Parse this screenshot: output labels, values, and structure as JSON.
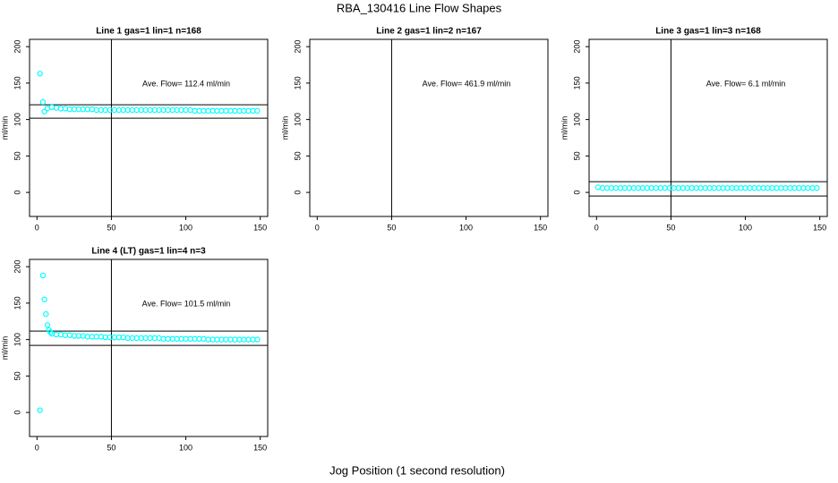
{
  "title": "RBA_130416  Line Flow Shapes",
  "xlabel": "Jog Position (1 second resolution)",
  "chart_data": [
    {
      "type": "scatter",
      "title": "Line 1 gas=1 lin=1 n=168",
      "ylabel": "ml/min",
      "annotation": "Ave. Flow=  112.4  ml/min",
      "color": "#00ffff",
      "xlim": [
        -5,
        155
      ],
      "ylim": [
        -33,
        210
      ],
      "xticks": [
        0,
        50,
        100,
        150
      ],
      "yticks": [
        0,
        50,
        100,
        150,
        200
      ],
      "vlines": [
        50
      ],
      "hlines": [
        120.2,
        101.8
      ],
      "x": [
        2,
        4,
        5,
        7,
        10,
        13,
        16,
        19,
        22,
        25,
        28,
        31,
        34,
        37,
        40,
        43,
        46,
        49,
        52,
        55,
        58,
        61,
        64,
        67,
        70,
        73,
        76,
        79,
        82,
        85,
        88,
        91,
        94,
        97,
        100,
        103,
        106,
        109,
        112,
        115,
        118,
        121,
        124,
        127,
        130,
        133,
        136,
        139,
        142,
        145,
        148
      ],
      "values": [
        163,
        124,
        111,
        115,
        117,
        116,
        115,
        115,
        114,
        114,
        114,
        114,
        114,
        114,
        113,
        113,
        113,
        113,
        113,
        113,
        113,
        113,
        113,
        113,
        113,
        113,
        113,
        113,
        113,
        113,
        113,
        113,
        113,
        113,
        113,
        113,
        112,
        112,
        112,
        112,
        112,
        112,
        112,
        112,
        112,
        112,
        112,
        112,
        112,
        112,
        112
      ]
    },
    {
      "type": "scatter",
      "title": "Line 2 gas=1 lin=2 n=167",
      "ylabel": "ml/min",
      "annotation": "Ave. Flow=  461.9  ml/min",
      "color": "#00ffff",
      "xlim": [
        -5,
        155
      ],
      "ylim": [
        -33,
        210
      ],
      "xticks": [
        0,
        50,
        100,
        150
      ],
      "yticks": [
        0,
        50,
        100,
        150,
        200
      ],
      "vlines": [
        50
      ],
      "hlines": [],
      "x": [],
      "values": []
    },
    {
      "type": "scatter",
      "title": "Line 3 gas=1 lin=3 n=168",
      "ylabel": "ml/min",
      "annotation": "Ave. Flow=  6.1  ml/min",
      "color": "#00ffff",
      "xlim": [
        -5,
        155
      ],
      "ylim": [
        -33,
        210
      ],
      "xticks": [
        0,
        50,
        100,
        150
      ],
      "yticks": [
        0,
        50,
        100,
        150,
        200
      ],
      "vlines": [
        50
      ],
      "hlines": [
        14.7,
        -4.9
      ],
      "x": [
        1,
        4,
        7,
        10,
        13,
        16,
        19,
        22,
        25,
        28,
        31,
        34,
        37,
        40,
        43,
        46,
        49,
        52,
        55,
        58,
        61,
        64,
        67,
        70,
        73,
        76,
        79,
        82,
        85,
        88,
        91,
        94,
        97,
        100,
        103,
        106,
        109,
        112,
        115,
        118,
        121,
        124,
        127,
        130,
        133,
        136,
        139,
        142,
        145,
        148
      ],
      "values": [
        7,
        6,
        6,
        6,
        6,
        6,
        6,
        6,
        6,
        6,
        6,
        6,
        6,
        6,
        6,
        6,
        6,
        6,
        6,
        6,
        6,
        6,
        6,
        6,
        6,
        6,
        6,
        6,
        6,
        6,
        6,
        6,
        6,
        6,
        6,
        6,
        6,
        6,
        6,
        6,
        6,
        6,
        6,
        6,
        6,
        6,
        6,
        6,
        6,
        6
      ]
    },
    {
      "type": "scatter",
      "title": "Line 4 (LT) gas=1 lin=4 n=3",
      "ylabel": "ml/min",
      "annotation": "Ave. Flow=  101.5  ml/min",
      "color": "#00ffff",
      "xlim": [
        -5,
        155
      ],
      "ylim": [
        -33,
        210
      ],
      "xticks": [
        0,
        50,
        100,
        150
      ],
      "yticks": [
        0,
        50,
        100,
        150,
        200
      ],
      "vlines": [
        50
      ],
      "hlines": [
        111.7,
        92
      ],
      "x": [
        2,
        4,
        5,
        6,
        7,
        8,
        9,
        10,
        13,
        16,
        19,
        22,
        25,
        28,
        31,
        34,
        37,
        40,
        43,
        46,
        49,
        52,
        55,
        58,
        61,
        64,
        67,
        70,
        73,
        76,
        79,
        82,
        85,
        88,
        91,
        94,
        97,
        100,
        103,
        106,
        109,
        112,
        115,
        118,
        121,
        124,
        127,
        130,
        133,
        136,
        139,
        142,
        145,
        148
      ],
      "values": [
        3,
        188,
        155,
        135,
        120,
        113,
        110,
        108,
        107,
        107,
        106,
        106,
        105,
        105,
        105,
        104,
        104,
        104,
        104,
        103,
        103,
        103,
        103,
        103,
        102,
        102,
        102,
        102,
        102,
        102,
        102,
        102,
        101,
        101,
        101,
        101,
        101,
        101,
        101,
        101,
        101,
        101,
        100,
        100,
        100,
        100,
        100,
        100,
        100,
        100,
        100,
        100,
        100,
        100
      ]
    }
  ]
}
